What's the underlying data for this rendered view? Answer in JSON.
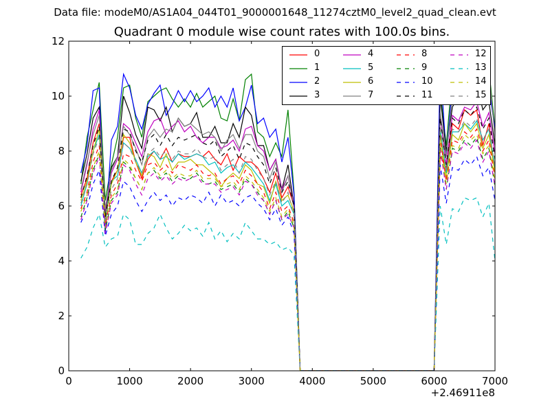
{
  "chart_data": {
    "type": "line",
    "suptitle": "Data file: modeM0/AS1A04_044T01_9000001648_11274cztM0_level2_quad_clean.evt",
    "title": "Quadrant 0 module wise count rates with 100.0s bins.",
    "xlabel": "",
    "ylabel": "",
    "x_offset_label": "+2.46911e8",
    "xlim": [
      0,
      7000
    ],
    "ylim": [
      0,
      12
    ],
    "xticks": [
      0,
      1000,
      2000,
      3000,
      4000,
      5000,
      6000,
      7000
    ],
    "yticks": [
      0,
      2,
      4,
      6,
      8,
      10,
      12
    ],
    "grid": false,
    "legend_position": "top-right",
    "x": [
      200,
      300,
      400,
      500,
      600,
      700,
      800,
      900,
      1000,
      1100,
      1200,
      1300,
      1400,
      1500,
      1600,
      1700,
      1800,
      1900,
      2000,
      2100,
      2200,
      2300,
      2400,
      2500,
      2600,
      2700,
      2800,
      2900,
      3000,
      3100,
      3200,
      3300,
      3400,
      3500,
      3600,
      3700,
      3800,
      3900,
      4000,
      4100,
      4200,
      4300,
      4400,
      4500,
      4600,
      4700,
      4800,
      4900,
      5000,
      5100,
      5200,
      5300,
      5400,
      5500,
      5600,
      5700,
      5800,
      5900,
      6000,
      6100,
      6200,
      6300,
      6400,
      6500,
      6600,
      6700,
      6800,
      6900,
      7000
    ],
    "series": [
      {
        "name": "0",
        "color": "#ff0000",
        "dashed": false,
        "values": [
          6.4,
          7.0,
          8.3,
          9.0,
          5.7,
          6.9,
          7.3,
          8.5,
          8.5,
          7.6,
          7.0,
          7.7,
          8.0,
          7.7,
          8.1,
          7.6,
          7.9,
          7.8,
          7.8,
          7.9,
          7.8,
          8.0,
          7.7,
          7.5,
          7.9,
          7.3,
          7.8,
          7.6,
          7.6,
          7.4,
          7.0,
          6.5,
          7.2,
          6.3,
          6.7,
          6.0,
          0,
          0,
          0,
          0,
          0,
          0,
          0,
          0,
          0,
          0,
          0,
          0,
          0,
          0,
          0,
          0,
          0,
          0,
          0,
          0,
          0,
          0,
          0,
          7.8,
          7.4,
          9.0,
          8.8,
          9.5,
          9.3,
          9.5,
          8.2,
          9.0,
          7.2
        ]
      },
      {
        "name": "1",
        "color": "#008000",
        "dashed": false,
        "values": [
          6.8,
          8.5,
          9.5,
          10.5,
          6.2,
          7.5,
          8.5,
          10.3,
          10.4,
          9.2,
          8.5,
          9.8,
          10.0,
          10.2,
          10.3,
          9.9,
          9.6,
          9.9,
          9.6,
          10.1,
          9.6,
          9.8,
          10.0,
          9.2,
          9.1,
          9.9,
          9.1,
          10.6,
          10.8,
          8.7,
          8.5,
          7.8,
          8.3,
          7.8,
          9.5,
          6.5,
          0,
          0,
          0,
          0,
          0,
          0,
          0,
          0,
          0,
          0,
          0,
          0,
          0,
          0,
          0,
          0,
          0,
          0,
          0,
          0,
          0,
          0,
          0,
          10.2,
          8.2,
          10.8,
          11.3,
          11.8,
          11.5,
          11.7,
          10.5,
          11.0,
          8.8
        ]
      },
      {
        "name": "2",
        "color": "#0000ff",
        "dashed": false,
        "values": [
          7.2,
          8.2,
          10.2,
          10.3,
          5.0,
          8.4,
          8.9,
          10.8,
          10.3,
          9.3,
          8.8,
          9.7,
          10.1,
          10.4,
          9.3,
          9.7,
          10.2,
          9.8,
          10.2,
          9.8,
          10.0,
          10.3,
          9.6,
          10.0,
          9.6,
          10.3,
          9.1,
          9.6,
          10.4,
          9.0,
          9.2,
          8.5,
          8.8,
          7.6,
          8.5,
          6.4,
          0,
          0,
          0,
          0,
          0,
          0,
          0,
          0,
          0,
          0,
          0,
          0,
          0,
          0,
          0,
          0,
          0,
          0,
          0,
          0,
          0,
          0,
          0,
          11.2,
          7.8,
          10.4,
          10.2,
          10.8,
          10.5,
          11.0,
          9.8,
          10.3,
          8.8
        ]
      },
      {
        "name": "3",
        "color": "#000000",
        "dashed": false,
        "values": [
          6.9,
          7.9,
          9.2,
          9.6,
          5.5,
          7.4,
          7.8,
          10.0,
          9.4,
          8.6,
          8.1,
          9.6,
          9.5,
          9.1,
          9.6,
          8.7,
          9.2,
          8.9,
          9.0,
          9.4,
          8.5,
          8.5,
          8.9,
          8.3,
          8.3,
          9.0,
          8.5,
          9.6,
          9.3,
          8.2,
          8.2,
          7.3,
          7.7,
          6.6,
          7.5,
          6.0,
          0,
          0,
          0,
          0,
          0,
          0,
          0,
          0,
          0,
          0,
          0,
          0,
          0,
          0,
          0,
          0,
          0,
          0,
          0,
          0,
          0,
          0,
          0,
          10.0,
          8.0,
          9.6,
          10.0,
          10.3,
          10.2,
          10.5,
          9.5,
          9.8,
          8.2
        ]
      },
      {
        "name": "4",
        "color": "#bf00bf",
        "dashed": false,
        "values": [
          6.5,
          7.5,
          8.8,
          9.5,
          5.8,
          7.2,
          7.7,
          9.0,
          8.8,
          8.3,
          7.8,
          8.7,
          9.1,
          9.2,
          8.6,
          8.9,
          9.1,
          8.7,
          8.9,
          8.5,
          8.3,
          8.5,
          8.5,
          8.1,
          8.2,
          8.4,
          8.0,
          8.8,
          8.9,
          8.2,
          8.0,
          7.3,
          7.7,
          6.6,
          7.1,
          6.0,
          0,
          0,
          0,
          0,
          0,
          0,
          0,
          0,
          0,
          0,
          0,
          0,
          0,
          0,
          0,
          0,
          0,
          0,
          0,
          0,
          0,
          0,
          0,
          9.3,
          7.5,
          9.3,
          9.1,
          9.6,
          9.5,
          9.8,
          8.9,
          9.4,
          7.9
        ]
      },
      {
        "name": "5",
        "color": "#00bfbf",
        "dashed": false,
        "values": [
          6.0,
          6.8,
          8.0,
          8.6,
          5.6,
          6.9,
          7.1,
          8.3,
          8.1,
          7.7,
          7.2,
          7.8,
          8.0,
          7.7,
          7.8,
          7.6,
          7.9,
          7.7,
          7.8,
          7.9,
          7.8,
          7.5,
          7.6,
          7.2,
          7.4,
          7.5,
          7.2,
          7.6,
          7.4,
          7.1,
          6.8,
          6.2,
          6.8,
          6.0,
          6.2,
          5.7,
          0,
          0,
          0,
          0,
          0,
          0,
          0,
          0,
          0,
          0,
          0,
          0,
          0,
          0,
          0,
          0,
          0,
          0,
          0,
          0,
          0,
          0,
          0,
          8.8,
          7.2,
          8.7,
          8.7,
          9.0,
          8.8,
          9.1,
          8.4,
          8.8,
          7.4
        ]
      },
      {
        "name": "6",
        "color": "#bfbf00",
        "dashed": false,
        "values": [
          6.2,
          6.9,
          8.0,
          8.8,
          5.5,
          6.8,
          7.3,
          8.6,
          8.3,
          7.6,
          7.1,
          7.9,
          7.8,
          7.4,
          7.9,
          7.3,
          7.6,
          7.6,
          7.7,
          7.5,
          7.5,
          7.3,
          7.1,
          6.7,
          7.0,
          7.2,
          7.0,
          7.5,
          7.3,
          6.8,
          6.7,
          6.1,
          6.9,
          6.2,
          6.4,
          5.8,
          0,
          0,
          0,
          0,
          0,
          0,
          0,
          0,
          0,
          0,
          0,
          0,
          0,
          0,
          0,
          0,
          0,
          0,
          0,
          0,
          0,
          0,
          0,
          8.6,
          7.0,
          8.6,
          8.4,
          9.0,
          8.7,
          9.0,
          8.1,
          8.6,
          7.2
        ]
      },
      {
        "name": "7",
        "color": "#808080",
        "dashed": false,
        "values": [
          6.6,
          7.6,
          8.6,
          9.3,
          5.9,
          7.3,
          7.8,
          8.9,
          8.6,
          8.1,
          7.5,
          8.5,
          8.8,
          8.5,
          8.8,
          8.7,
          9.2,
          8.9,
          9.0,
          8.8,
          8.6,
          8.7,
          8.5,
          8.0,
          8.4,
          8.6,
          8.1,
          8.6,
          8.6,
          8.0,
          7.8,
          7.0,
          7.6,
          6.5,
          7.1,
          5.9,
          0,
          0,
          0,
          0,
          0,
          0,
          0,
          0,
          0,
          0,
          0,
          0,
          0,
          0,
          0,
          0,
          0,
          0,
          0,
          0,
          0,
          0,
          0,
          9.4,
          7.8,
          10.0,
          11.2,
          11.6,
          11.3,
          11.5,
          10.6,
          10.9,
          8.5
        ]
      },
      {
        "name": "8",
        "color": "#ff0000",
        "dashed": true,
        "values": [
          5.9,
          6.5,
          7.6,
          8.2,
          5.3,
          6.4,
          6.8,
          7.9,
          7.8,
          7.3,
          6.9,
          7.5,
          7.6,
          7.3,
          7.5,
          7.2,
          7.5,
          7.4,
          7.3,
          7.5,
          7.2,
          7.1,
          7.2,
          6.8,
          7.0,
          7.1,
          6.8,
          7.3,
          7.1,
          6.8,
          6.5,
          5.9,
          6.5,
          5.8,
          6.0,
          5.4,
          0,
          0,
          0,
          0,
          0,
          0,
          0,
          0,
          0,
          0,
          0,
          0,
          0,
          0,
          0,
          0,
          0,
          0,
          0,
          0,
          0,
          0,
          0,
          8.5,
          6.9,
          8.4,
          8.3,
          8.7,
          8.5,
          8.8,
          8.0,
          8.4,
          7.0
        ]
      },
      {
        "name": "9",
        "color": "#008000",
        "dashed": true,
        "values": [
          5.6,
          6.3,
          7.3,
          7.9,
          5.1,
          6.2,
          6.5,
          7.6,
          7.4,
          7.0,
          6.6,
          7.2,
          7.3,
          7.0,
          7.2,
          6.9,
          7.1,
          7.0,
          7.0,
          7.2,
          6.9,
          6.8,
          6.9,
          6.6,
          6.7,
          6.8,
          6.5,
          7.0,
          6.8,
          6.5,
          6.2,
          5.7,
          6.2,
          5.5,
          5.8,
          5.2,
          0,
          0,
          0,
          0,
          0,
          0,
          0,
          0,
          0,
          0,
          0,
          0,
          0,
          0,
          0,
          0,
          0,
          0,
          0,
          0,
          0,
          0,
          0,
          8.2,
          6.6,
          8.1,
          8.0,
          8.4,
          8.2,
          8.5,
          7.7,
          8.1,
          6.7
        ]
      },
      {
        "name": "10",
        "color": "#0000ff",
        "dashed": true,
        "values": [
          5.4,
          5.9,
          6.8,
          7.3,
          4.9,
          5.7,
          6.0,
          6.9,
          6.7,
          6.2,
          5.8,
          6.2,
          6.5,
          6.2,
          6.4,
          6.0,
          6.3,
          6.2,
          6.4,
          6.3,
          6.1,
          6.5,
          6.0,
          6.4,
          6.1,
          6.2,
          6.0,
          6.3,
          6.4,
          6.1,
          5.9,
          5.5,
          5.9,
          5.3,
          5.6,
          5.0,
          0,
          0,
          0,
          0,
          0,
          0,
          0,
          0,
          0,
          0,
          0,
          0,
          0,
          0,
          0,
          0,
          0,
          0,
          0,
          0,
          0,
          0,
          0,
          7.5,
          6.1,
          7.4,
          7.3,
          7.7,
          7.5,
          7.8,
          7.1,
          7.4,
          6.2
        ]
      },
      {
        "name": "11",
        "color": "#000000",
        "dashed": true,
        "values": [
          6.3,
          7.1,
          8.2,
          8.9,
          5.6,
          6.9,
          7.4,
          8.8,
          8.7,
          8.0,
          7.6,
          8.4,
          8.6,
          8.2,
          8.6,
          8.2,
          8.5,
          8.4,
          8.5,
          8.6,
          8.3,
          8.2,
          8.4,
          7.8,
          8.0,
          8.2,
          7.7,
          8.3,
          8.2,
          7.8,
          7.5,
          6.8,
          7.4,
          6.5,
          6.9,
          6.0,
          0,
          0,
          0,
          0,
          0,
          0,
          0,
          0,
          0,
          0,
          0,
          0,
          0,
          0,
          0,
          0,
          0,
          0,
          0,
          0,
          0,
          0,
          0,
          9.2,
          7.5,
          9.2,
          9.0,
          9.5,
          9.3,
          9.6,
          8.8,
          9.2,
          7.7
        ]
      },
      {
        "name": "12",
        "color": "#bf00bf",
        "dashed": true,
        "values": [
          5.5,
          6.2,
          7.2,
          7.8,
          5.0,
          6.1,
          6.4,
          7.5,
          7.3,
          6.8,
          6.4,
          7.0,
          7.2,
          6.9,
          7.1,
          6.8,
          7.0,
          6.9,
          7.0,
          7.1,
          6.8,
          6.8,
          6.8,
          6.5,
          6.6,
          6.7,
          6.4,
          6.9,
          6.8,
          6.4,
          6.2,
          5.7,
          6.2,
          5.5,
          5.7,
          5.2,
          0,
          0,
          0,
          0,
          0,
          0,
          0,
          0,
          0,
          0,
          0,
          0,
          0,
          0,
          0,
          0,
          0,
          0,
          0,
          0,
          0,
          0,
          0,
          8.1,
          6.6,
          8.0,
          7.9,
          8.3,
          8.1,
          8.4,
          7.6,
          8.0,
          6.7
        ]
      },
      {
        "name": "13",
        "color": "#00bfbf",
        "dashed": true,
        "values": [
          4.1,
          4.5,
          5.2,
          5.7,
          4.5,
          4.8,
          4.9,
          5.7,
          5.5,
          4.6,
          4.6,
          5.0,
          5.2,
          5.7,
          5.2,
          4.8,
          5.0,
          5.3,
          5.1,
          5.2,
          4.9,
          5.4,
          4.8,
          5.1,
          4.7,
          5.0,
          4.8,
          5.4,
          5.1,
          4.8,
          4.8,
          4.6,
          4.7,
          4.4,
          4.5,
          4.2,
          0,
          0,
          0,
          0,
          0,
          0,
          0,
          0,
          0,
          0,
          0,
          0,
          0,
          0,
          0,
          0,
          0,
          0,
          0,
          0,
          0,
          0,
          0,
          6.0,
          4.6,
          5.9,
          5.8,
          6.3,
          6.2,
          6.3,
          5.6,
          6.1,
          4.0
        ]
      },
      {
        "name": "14",
        "color": "#bfbf00",
        "dashed": true,
        "values": [
          5.8,
          6.4,
          7.4,
          8.0,
          5.2,
          6.3,
          6.6,
          7.7,
          7.5,
          7.0,
          6.6,
          7.2,
          7.4,
          7.1,
          7.3,
          7.0,
          7.2,
          7.1,
          7.1,
          7.3,
          7.0,
          7.0,
          7.0,
          6.7,
          6.8,
          6.9,
          6.6,
          7.1,
          6.9,
          6.6,
          6.3,
          5.8,
          6.3,
          5.6,
          5.9,
          5.3,
          0,
          0,
          0,
          0,
          0,
          0,
          0,
          0,
          0,
          0,
          0,
          0,
          0,
          0,
          0,
          0,
          0,
          0,
          0,
          0,
          0,
          0,
          0,
          8.3,
          6.8,
          8.2,
          8.1,
          8.6,
          8.4,
          8.6,
          7.9,
          8.2,
          6.9
        ]
      },
      {
        "name": "15",
        "color": "#808080",
        "dashed": true,
        "values": [
          6.1,
          6.8,
          7.9,
          8.5,
          5.4,
          6.6,
          7.0,
          8.3,
          8.1,
          7.6,
          7.2,
          7.9,
          8.1,
          7.8,
          8.0,
          7.7,
          8.0,
          7.9,
          7.9,
          8.1,
          7.8,
          7.7,
          7.8,
          7.3,
          7.5,
          7.7,
          7.2,
          7.8,
          7.7,
          7.3,
          7.0,
          6.4,
          6.9,
          6.1,
          6.5,
          5.6,
          0,
          0,
          0,
          0,
          0,
          0,
          0,
          0,
          0,
          0,
          0,
          0,
          0,
          0,
          0,
          0,
          0,
          0,
          0,
          0,
          0,
          0,
          0,
          8.9,
          7.3,
          8.8,
          8.7,
          9.1,
          8.9,
          9.2,
          8.4,
          8.8,
          7.4
        ]
      }
    ]
  }
}
